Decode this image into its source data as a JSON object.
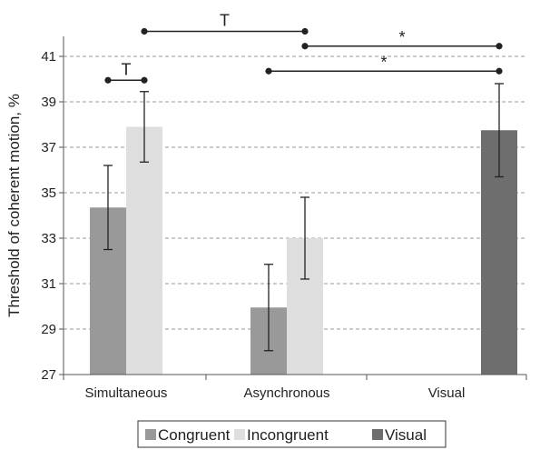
{
  "chart_data": {
    "type": "bar",
    "title": "",
    "xlabel": "",
    "ylabel": "Threshold of coherent motion, %",
    "ylim": [
      27,
      42
    ],
    "yticks": [
      27,
      29,
      31,
      33,
      35,
      37,
      39,
      41
    ],
    "grid": true,
    "legend_position": "bottom",
    "categories": [
      "Simultaneous",
      "Asynchronous",
      "Visual"
    ],
    "series": [
      {
        "name": "Congruent",
        "color": "#999999",
        "values": [
          34.35,
          29.95,
          null
        ],
        "errors": [
          1.85,
          1.9,
          null
        ]
      },
      {
        "name": "Incongruent",
        "color": "#dedede",
        "values": [
          37.9,
          33.0,
          null
        ],
        "errors": [
          1.55,
          1.8,
          null
        ]
      },
      {
        "name": "Visual",
        "color": "#6e6e6e",
        "values": [
          null,
          null,
          37.75
        ],
        "errors": [
          null,
          null,
          2.05
        ]
      }
    ],
    "significance": [
      {
        "label": "T",
        "y": 39.95,
        "from": "Simultaneous.Congruent",
        "to": "Simultaneous.Incongruent"
      },
      {
        "label": "T",
        "y": 42.1,
        "from": "Simultaneous.Incongruent",
        "to": "Asynchronous.Incongruent"
      },
      {
        "label": "*",
        "y": 41.45,
        "from": "Asynchronous.Incongruent",
        "to": "Visual.Visual"
      },
      {
        "label": "*",
        "y": 40.35,
        "from": "Asynchronous.Congruent",
        "to": "Visual.Visual"
      }
    ]
  }
}
